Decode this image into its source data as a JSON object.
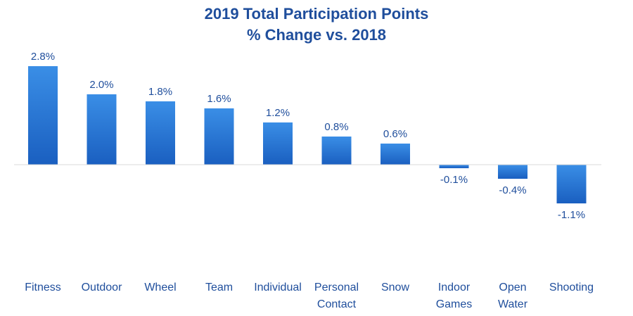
{
  "chart_data": {
    "type": "bar",
    "title": [
      "2019 Total Participation Points",
      "% Change vs. 2018"
    ],
    "categories": [
      [
        "Fitness"
      ],
      [
        "Outdoor"
      ],
      [
        "Wheel"
      ],
      [
        "Team"
      ],
      [
        "Individual"
      ],
      [
        "Personal",
        "Contact"
      ],
      [
        "Snow"
      ],
      [
        "Indoor",
        "Games"
      ],
      [
        "Open",
        "Water"
      ],
      [
        "Shooting"
      ]
    ],
    "values": [
      2.8,
      2.0,
      1.8,
      1.6,
      1.2,
      0.8,
      0.6,
      -0.1,
      -0.4,
      -1.1
    ],
    "data_labels": [
      "2.8%",
      "2.0%",
      "1.8%",
      "1.6%",
      "1.2%",
      "0.8%",
      "0.6%",
      "-0.1%",
      "-0.4%",
      "-1.1%"
    ],
    "xlabel": "",
    "ylabel": "",
    "ylim": [
      -1.1,
      2.8
    ],
    "grid": false,
    "legend": "none",
    "colors": {
      "bar_top": "#3a8ee6",
      "bar_bottom": "#1a5fc0",
      "title": "#1f4e9c",
      "data_label": "#1f4e9c",
      "category_label": "#1f4e9c",
      "axis": "#d9d9d9"
    }
  }
}
